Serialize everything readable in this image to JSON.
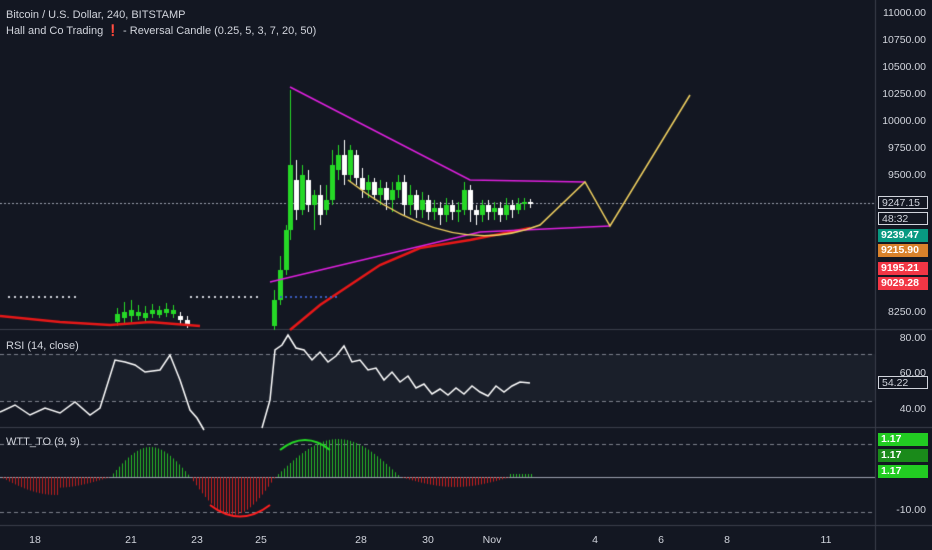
{
  "header": {
    "title": "Bitcoin / U.S. Dollar, 240, BITSTAMP",
    "indicator": "Hall and Co Trading ❗ - Reversal Candle (0.25, 5, 3, 7, 20, 50)"
  },
  "panes": {
    "rsi_label": "RSI (14, close)",
    "wtt_label": "WTT_TO (9, 9)"
  },
  "price_axis": {
    "ticks": [
      "11000.00",
      "10750.00",
      "10500.00",
      "10250.00",
      "10000.00",
      "9750.00",
      "9500.00",
      "8250.00"
    ],
    "badges": [
      {
        "text": "9247.15",
        "bg": "#131722",
        "fg": "#d1d4dc",
        "outline": true
      },
      {
        "text": "48:32",
        "bg": "#131722",
        "fg": "#d1d4dc",
        "outline": true
      },
      {
        "text": "9239.47",
        "bg": "#089981",
        "fg": "#ffffff"
      },
      {
        "text": "9215.90",
        "bg": "#f7931a",
        "fg": "#ffffff"
      },
      {
        "text": "9195.21",
        "bg": "#f23645",
        "fg": "#ffffff"
      },
      {
        "text": "9029.28",
        "bg": "#f23645",
        "fg": "#ffffff"
      }
    ]
  },
  "rsi_axis": {
    "ticks": [
      "80.00",
      "60.00",
      "40.00"
    ],
    "current": "54.22"
  },
  "wtt_axis": {
    "ticks": [
      "-10.00"
    ],
    "badges": [
      "1.17",
      "1.17",
      "1.17"
    ]
  },
  "time_axis": {
    "ticks": [
      "18",
      "21",
      "23",
      "25",
      "28",
      "30",
      "Nov",
      "4",
      "6",
      "8",
      "11"
    ]
  },
  "colors": {
    "background": "#131722",
    "up_candle": "#26d926",
    "down_candle": "#ffffff",
    "triangle": "#e020e0",
    "forecast": "#f0d060",
    "ma_red": "#f01010",
    "rsi_line": "#ffffff",
    "wtt_green": "#26b826",
    "wtt_red": "#c81e1e"
  }
}
